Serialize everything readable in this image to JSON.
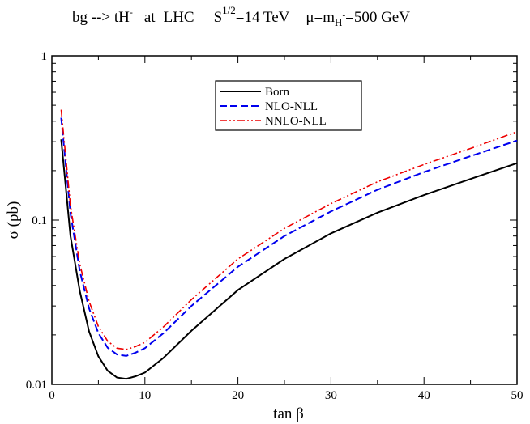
{
  "chart_data": {
    "type": "line",
    "title": {
      "process": "bg --> tH",
      "process_sup": "-",
      "at": "at",
      "collider": "LHC",
      "energy_prefix": "S",
      "energy_sup": "1/2",
      "energy_value": "=14 TeV",
      "scale_prefix": "μ=m",
      "scale_sub": "H",
      "scale_sub_sup": "-",
      "scale_value": "=500 GeV"
    },
    "xlabel": "tan β",
    "ylabel": "σ (pb)",
    "xlim": [
      0,
      50
    ],
    "ylim": [
      0.01,
      1
    ],
    "yscale": "log",
    "x_ticks": [
      0,
      10,
      20,
      30,
      40,
      50
    ],
    "x_tick_labels": [
      "0",
      "10",
      "20",
      "30",
      "40",
      "50"
    ],
    "y_ticks": [
      0.01,
      0.1,
      1
    ],
    "y_tick_labels": [
      "0.01",
      "0.1",
      "1"
    ],
    "legend_position": "top-center",
    "series": [
      {
        "name": "Born",
        "color": "#000000",
        "dash": "solid",
        "x": [
          1,
          2,
          3,
          4,
          5,
          6,
          7,
          8,
          9,
          10,
          12,
          15,
          20,
          25,
          30,
          35,
          40,
          45,
          50
        ],
        "y": [
          0.31,
          0.08,
          0.037,
          0.021,
          0.0148,
          0.0121,
          0.011,
          0.0108,
          0.0112,
          0.0118,
          0.0145,
          0.0212,
          0.0375,
          0.058,
          0.083,
          0.111,
          0.142,
          0.178,
          0.222
        ]
      },
      {
        "name": "NLO-NLL",
        "color": "#0000ee",
        "dash": "dashed",
        "x": [
          1,
          2,
          3,
          4,
          5,
          6,
          7,
          8,
          9,
          10,
          12,
          15,
          20,
          25,
          30,
          35,
          40,
          45,
          50
        ],
        "y": [
          0.42,
          0.11,
          0.049,
          0.029,
          0.0205,
          0.0167,
          0.0152,
          0.0149,
          0.0156,
          0.0166,
          0.0205,
          0.03,
          0.052,
          0.08,
          0.113,
          0.153,
          0.196,
          0.245,
          0.305
        ]
      },
      {
        "name": "NNLO-NLL",
        "color": "#ee0000",
        "dash": "dashdot",
        "x": [
          1,
          2,
          3,
          4,
          5,
          6,
          7,
          8,
          9,
          10,
          12,
          15,
          20,
          25,
          30,
          35,
          40,
          45,
          50
        ],
        "y": [
          0.47,
          0.122,
          0.054,
          0.032,
          0.0225,
          0.0183,
          0.0166,
          0.0163,
          0.017,
          0.018,
          0.0224,
          0.0328,
          0.058,
          0.089,
          0.126,
          0.171,
          0.218,
          0.273,
          0.345
        ]
      }
    ]
  }
}
